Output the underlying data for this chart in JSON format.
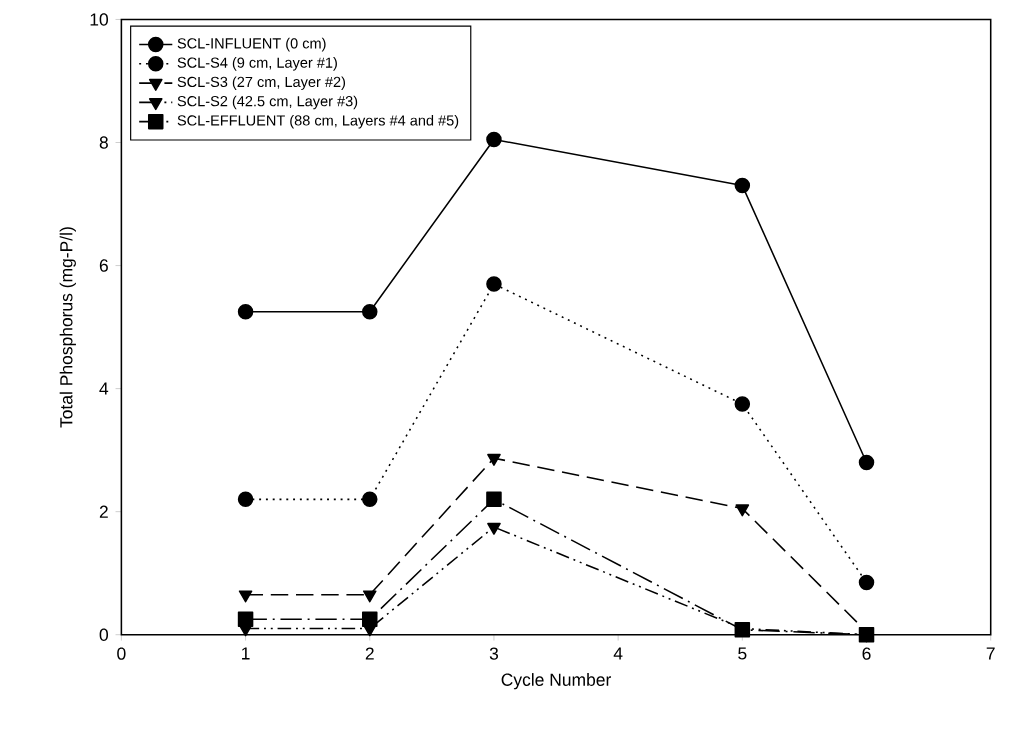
{
  "chart_data": {
    "type": "line",
    "xlabel": "Cycle Number",
    "ylabel": "Total Phosphorus (mg-P/l)",
    "x": [
      1,
      2,
      3,
      5,
      6
    ],
    "series": [
      {
        "name": "SCL-INFLUENT (0 cm)",
        "color": "#000000",
        "marker": "circle",
        "line_style": "solid",
        "values": [
          5.25,
          5.25,
          8.05,
          7.3,
          2.8
        ]
      },
      {
        "name": "SCL-S4 (9 cm, Layer #1)",
        "color": "#000000",
        "marker": "circle",
        "line_style": "dotted",
        "values": [
          2.2,
          2.2,
          5.7,
          3.75,
          0.85
        ]
      },
      {
        "name": "SCL-S3 (27 cm, Layer #2)",
        "color": "#000000",
        "marker": "triangle",
        "line_style": "dashed",
        "values": [
          0.65,
          0.65,
          2.87,
          2.05,
          0.05
        ]
      },
      {
        "name": "SCL-S2 (42.5 cm, Layer #3)",
        "color": "#000000",
        "marker": "triangle",
        "line_style": "dashed",
        "values": [
          0.1,
          0.1,
          1.75,
          0.1,
          0
        ]
      },
      {
        "name": "SCL-EFFLUENT (88 cm, Layers #4 and #5)",
        "color": "#000000",
        "marker": "square",
        "line_style": "dashed",
        "values": [
          0.25,
          0.25,
          2.2,
          0.08,
          0
        ]
      }
    ],
    "xlim": [
      0,
      7
    ],
    "xticks": [
      0,
      1,
      2,
      3,
      4,
      5,
      6,
      7
    ],
    "ylim": [
      0,
      10
    ],
    "yticks": [
      0,
      2,
      4,
      6,
      8,
      10
    ],
    "grid": false,
    "legend": "top left"
  }
}
